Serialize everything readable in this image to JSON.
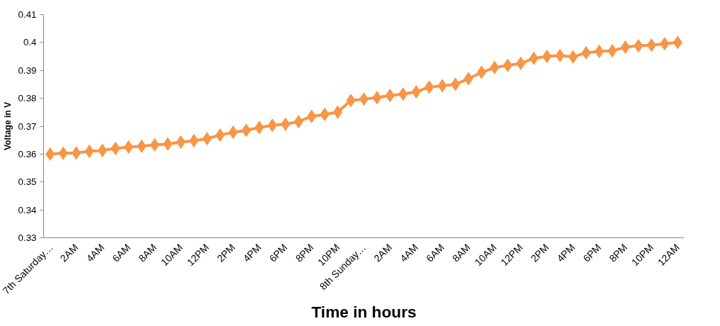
{
  "chart_data": {
    "type": "line",
    "xlabel": "Time in hours",
    "ylabel": "Voltage in V",
    "categories": [
      "7th Saturday…",
      null,
      "2AM",
      null,
      "4AM",
      null,
      "6AM",
      null,
      "8AM",
      null,
      "10AM",
      null,
      "12PM",
      null,
      "2PM",
      null,
      "4PM",
      null,
      "6PM",
      null,
      "8PM",
      null,
      "10PM",
      null,
      "8th Sunday…",
      null,
      "2AM",
      null,
      "4AM",
      null,
      "6AM",
      null,
      "8AM",
      null,
      "10AM",
      null,
      "12PM",
      null,
      "2PM",
      null,
      "4PM",
      null,
      "6PM",
      null,
      "8PM",
      null,
      "10PM",
      null,
      "12AM"
    ],
    "series": [
      {
        "color": "#f79646",
        "values": [
          0.36,
          0.3603,
          0.3604,
          0.361,
          0.3613,
          0.362,
          0.3625,
          0.3628,
          0.3633,
          0.3636,
          0.3643,
          0.3648,
          0.3655,
          0.3668,
          0.3678,
          0.3685,
          0.3695,
          0.3703,
          0.3707,
          0.3716,
          0.3735,
          0.3742,
          0.375,
          0.3792,
          0.3797,
          0.3802,
          0.381,
          0.3815,
          0.3823,
          0.384,
          0.3845,
          0.385,
          0.387,
          0.3893,
          0.391,
          0.3918,
          0.3925,
          0.3943,
          0.395,
          0.3953,
          0.3948,
          0.3963,
          0.3968,
          0.397,
          0.3983,
          0.3988,
          0.399,
          0.3995,
          0.4
        ]
      }
    ],
    "ylim": [
      0.33,
      0.41
    ],
    "yticks": [
      0.33,
      0.34,
      0.35,
      0.36,
      0.37,
      0.38,
      0.39,
      0.4,
      0.41
    ],
    "marker": "diamond",
    "line_style": "solid",
    "grid": false
  }
}
